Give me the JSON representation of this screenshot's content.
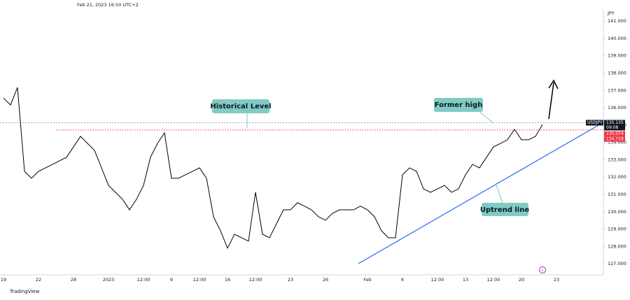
{
  "chart_data": {
    "type": "line",
    "header": "Feb 21, 2023 16:50 UTC+2",
    "currency": "JPY",
    "brand": "TradingView",
    "color": "#000000",
    "categories": [
      "19",
      null,
      null,
      null,
      null,
      "22",
      null,
      null,
      null,
      null,
      "28",
      null,
      null,
      null,
      null,
      "2023",
      null,
      null,
      null,
      null,
      "12:00",
      null,
      null,
      null,
      "9",
      null,
      null,
      null,
      "12:00",
      null,
      null,
      null,
      "16",
      null,
      null,
      null,
      "12:00",
      null,
      null,
      null,
      null,
      "23",
      null,
      null,
      null,
      null,
      "26",
      null,
      null,
      null,
      null,
      null,
      "Feb",
      null,
      null,
      null,
      null,
      "6",
      null,
      null,
      null,
      null,
      "12:00",
      null,
      null,
      null,
      "13",
      null,
      null,
      null,
      "12:00",
      null,
      null,
      null,
      "20",
      null,
      null,
      null,
      null,
      "23",
      null,
      null,
      null,
      null,
      null,
      null
    ],
    "values": [
      136.56,
      136.16,
      137.17,
      132.33,
      131.93,
      132.33,
      132.53,
      132.73,
      132.94,
      133.14,
      133.74,
      134.35,
      133.94,
      133.54,
      132.53,
      131.52,
      131.12,
      130.72,
      130.11,
      130.72,
      131.52,
      133.14,
      133.94,
      134.55,
      131.93,
      131.93,
      132.13,
      132.33,
      132.53,
      131.93,
      129.71,
      128.9,
      127.9,
      128.7,
      128.5,
      128.3,
      131.12,
      128.7,
      128.5,
      129.31,
      130.11,
      130.11,
      130.52,
      130.32,
      130.11,
      129.71,
      129.51,
      129.91,
      130.11,
      130.11,
      130.11,
      130.32,
      130.11,
      129.71,
      128.9,
      128.5,
      128.5,
      132.13,
      132.53,
      132.33,
      131.32,
      131.12,
      131.32,
      131.52,
      131.12,
      131.32,
      132.13,
      132.73,
      132.53,
      133.14,
      133.74,
      133.94,
      134.15,
      134.75,
      134.15,
      134.15,
      134.35,
      135.03,
      null,
      null,
      null,
      null,
      null,
      null,
      null,
      null
    ],
    "ylim": [
      126.36,
      141.65
    ],
    "yticks": [
      {
        "value": 127,
        "label": "127.000"
      },
      {
        "value": 128,
        "label": "128.000"
      },
      {
        "value": 129,
        "label": "129.000"
      },
      {
        "value": 130,
        "label": "130.000"
      },
      {
        "value": 131,
        "label": "131.000"
      },
      {
        "value": 132,
        "label": "132.000"
      },
      {
        "value": 133,
        "label": "133.000"
      },
      {
        "value": 134,
        "label": "134.000"
      },
      {
        "value": 135,
        "label": "135.000"
      },
      {
        "value": 136,
        "label": "136.000"
      },
      {
        "value": 137,
        "label": "137.000"
      },
      {
        "value": 138,
        "label": "138.000"
      },
      {
        "value": 139,
        "label": "139.000"
      },
      {
        "value": 140,
        "label": "140.000"
      },
      {
        "value": 141,
        "label": "141.000"
      }
    ],
    "last_price": {
      "symbol": "USDJPY",
      "value": 135.135,
      "countdown": "09:08"
    },
    "levels": [
      135.074,
      134.718
    ],
    "annotations": [
      "Historical Level",
      "Former high",
      "Uptrend line"
    ]
  }
}
